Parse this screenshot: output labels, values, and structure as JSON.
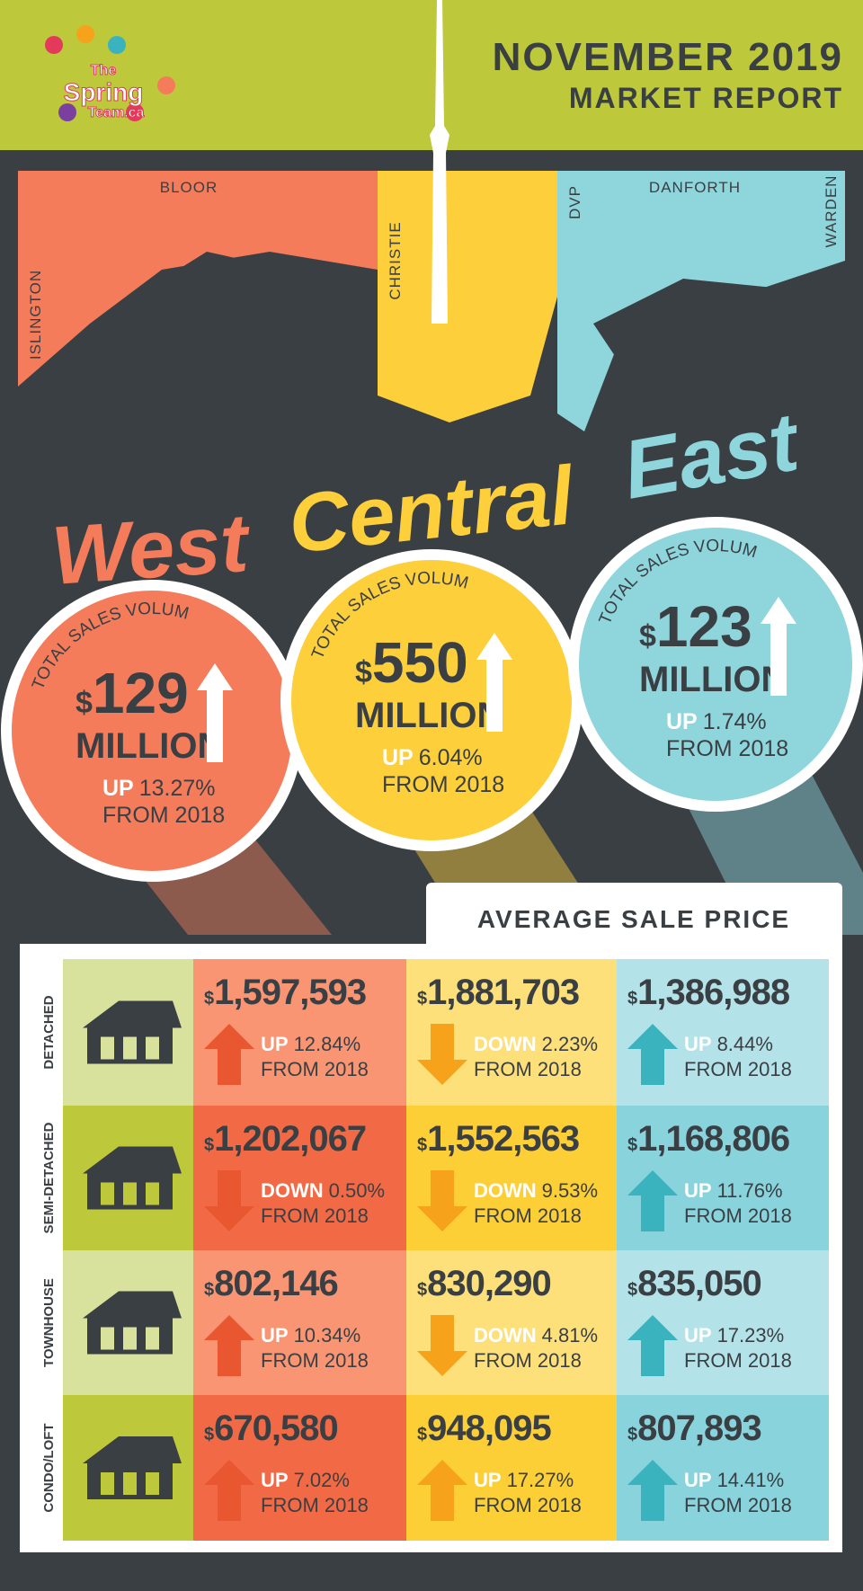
{
  "header": {
    "logo": [
      "The",
      "Spring",
      "Team.ca"
    ],
    "title": "NOVEMBER 2019",
    "subtitle": "MARKET REPORT"
  },
  "map_labels": [
    "BLOOR",
    "CHRISTIE",
    "DVP",
    "DANFORTH",
    "WARDEN",
    "ISLINGTON"
  ],
  "regions": [
    "West",
    "Central",
    "East"
  ],
  "volumes": [
    {
      "label": "TOTAL SALES VOLUME",
      "currency": "$",
      "amount": "129",
      "unit": "MILLION",
      "direction": "UP",
      "change": "13.27%",
      "from": "FROM 2018"
    },
    {
      "label": "TOTAL SALES VOLUME",
      "currency": "$",
      "amount": "550",
      "unit": "MILLION",
      "direction": "UP",
      "change": "6.04%",
      "from": "FROM 2018"
    },
    {
      "label": "TOTAL SALES VOLUME",
      "currency": "$",
      "amount": "123",
      "unit": "MILLION",
      "direction": "UP",
      "change": "1.74%",
      "from": "FROM 2018"
    }
  ],
  "table": {
    "heading": "AVERAGE SALE PRICE",
    "rows": [
      {
        "type": "DETACHED",
        "cells": [
          {
            "currency": "$",
            "price": "1,597,593",
            "direction": "UP",
            "change": "12.84%",
            "from": "FROM 2018"
          },
          {
            "currency": "$",
            "price": "1,881,703",
            "direction": "DOWN",
            "change": "2.23%",
            "from": "FROM 2018"
          },
          {
            "currency": "$",
            "price": "1,386,988",
            "direction": "UP",
            "change": "8.44%",
            "from": "FROM 2018"
          }
        ]
      },
      {
        "type": "SEMI-DETACHED",
        "cells": [
          {
            "currency": "$",
            "price": "1,202,067",
            "direction": "DOWN",
            "change": "0.50%",
            "from": "FROM 2018"
          },
          {
            "currency": "$",
            "price": "1,552,563",
            "direction": "DOWN",
            "change": "9.53%",
            "from": "FROM 2018"
          },
          {
            "currency": "$",
            "price": "1,168,806",
            "direction": "UP",
            "change": "11.76%",
            "from": "FROM 2018"
          }
        ]
      },
      {
        "type": "TOWNHOUSE",
        "cells": [
          {
            "currency": "$",
            "price": "802,146",
            "direction": "UP",
            "change": "10.34%",
            "from": "FROM 2018"
          },
          {
            "currency": "$",
            "price": "830,290",
            "direction": "DOWN",
            "change": "4.81%",
            "from": "FROM 2018"
          },
          {
            "currency": "$",
            "price": "835,050",
            "direction": "UP",
            "change": "17.23%",
            "from": "FROM 2018"
          }
        ]
      },
      {
        "type": "CONDO/LOFT",
        "cells": [
          {
            "currency": "$",
            "price": "670,580",
            "direction": "UP",
            "change": "7.02%",
            "from": "FROM 2018"
          },
          {
            "currency": "$",
            "price": "948,095",
            "direction": "UP",
            "change": "17.27%",
            "from": "FROM 2018"
          },
          {
            "currency": "$",
            "price": "807,893",
            "direction": "UP",
            "change": "14.41%",
            "from": "FROM 2018"
          }
        ]
      }
    ]
  }
}
